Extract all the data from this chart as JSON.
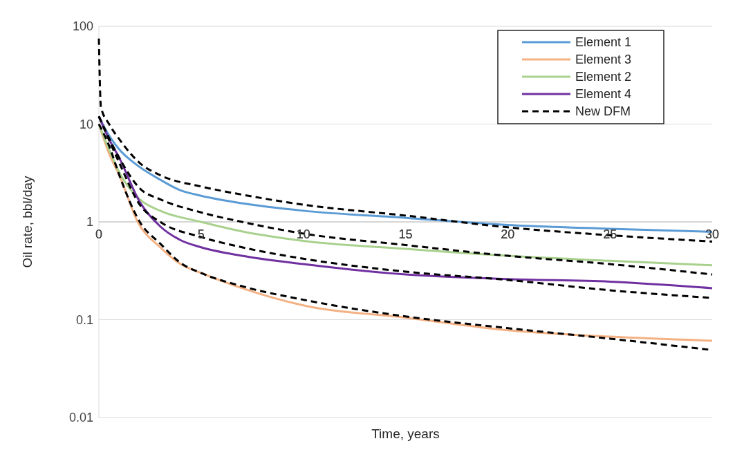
{
  "chart_data": {
    "type": "line",
    "xlabel": "Time, years",
    "ylabel": "Oil rate, bbl/day",
    "log": "y",
    "grid": "y",
    "legend": "top right",
    "line_style": "solid",
    "xlim": [
      0,
      30
    ],
    "xticks": [
      0,
      5,
      10,
      15,
      20,
      25,
      30
    ],
    "ylim": [
      0.01,
      100
    ],
    "yticks": [
      0.01,
      0.1,
      1,
      10,
      100
    ],
    "series": [
      {
        "name": "Element 1",
        "color": "#5b9bd5",
        "x": [
          0,
          0.3,
          1,
          1.8,
          3,
          4,
          5,
          7,
          10,
          15,
          20,
          25,
          30
        ],
        "values": [
          12,
          9,
          5.5,
          3.9,
          2.7,
          2.1,
          1.85,
          1.55,
          1.3,
          1.1,
          0.93,
          0.85,
          0.79
        ]
      },
      {
        "name": "Element 3",
        "color": "#f4b183",
        "x": [
          0,
          0.5,
          1,
          1.9,
          3,
          4,
          5,
          7,
          10,
          15,
          20,
          25,
          30
        ],
        "values": [
          10,
          5,
          3,
          1.0,
          0.55,
          0.37,
          0.3,
          0.21,
          0.14,
          0.105,
          0.078,
          0.067,
          0.061
        ]
      },
      {
        "name": "Element 2",
        "color": "#a9d18e",
        "x": [
          0,
          0.5,
          1,
          2,
          3,
          5,
          7,
          10,
          15,
          20,
          25,
          30
        ],
        "values": [
          10,
          5.5,
          3.2,
          1.7,
          1.3,
          1.0,
          0.8,
          0.64,
          0.53,
          0.45,
          0.4,
          0.36
        ]
      },
      {
        "name": "Element 4",
        "color": "#7030a0",
        "x": [
          0,
          0.5,
          1,
          2,
          3,
          4,
          5,
          7,
          10,
          15,
          20,
          25,
          30
        ],
        "values": [
          12,
          7,
          4.5,
          1.6,
          0.9,
          0.65,
          0.55,
          0.45,
          0.37,
          0.29,
          0.26,
          0.245,
          0.21
        ]
      },
      {
        "name": "New DFM",
        "color": "#000000",
        "line_style": "dashed",
        "x": [
          0,
          0.1,
          0.5,
          1,
          2,
          3,
          5,
          7,
          10,
          15,
          20,
          25,
          30
        ],
        "values": [
          75,
          15,
          10,
          7,
          4,
          3,
          2.3,
          1.9,
          1.5,
          1.16,
          0.88,
          0.73,
          0.63
        ]
      },
      {
        "color": "#000000",
        "line_style": "dashed",
        "x": [
          0,
          1,
          2,
          3,
          5,
          7,
          10,
          15,
          20,
          25,
          30
        ],
        "values": [
          12,
          4.5,
          2.2,
          1.7,
          1.25,
          1.0,
          0.76,
          0.58,
          0.45,
          0.37,
          0.29
        ]
      },
      {
        "color": "#000000",
        "line_style": "dashed",
        "x": [
          0,
          1,
          2,
          3,
          5,
          7,
          10,
          15,
          20,
          25,
          30
        ],
        "values": [
          12,
          4,
          1.5,
          1.0,
          0.7,
          0.55,
          0.42,
          0.31,
          0.255,
          0.2,
          0.167
        ]
      },
      {
        "color": "#000000",
        "line_style": "dashed",
        "x": [
          0,
          0.5,
          1,
          2,
          3,
          4,
          5,
          7,
          10,
          15,
          20,
          25,
          30
        ],
        "values": [
          10,
          6,
          3,
          1.0,
          0.6,
          0.38,
          0.3,
          0.22,
          0.16,
          0.108,
          0.082,
          0.064,
          0.049
        ]
      }
    ]
  }
}
